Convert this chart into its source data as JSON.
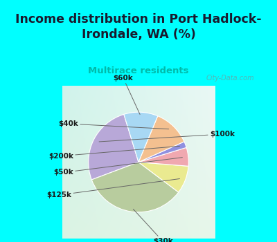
{
  "title": "Income distribution in Port Hadlock-\nIrondale, WA (%)",
  "subtitle": "Multirace residents",
  "slices": [
    {
      "label": "$100k",
      "value": 26,
      "color": "#b8a8d8"
    },
    {
      "label": "$30k",
      "value": 34,
      "color": "#b8cc9e"
    },
    {
      "label": "$125k",
      "value": 9,
      "color": "#eaea90"
    },
    {
      "label": "$50k",
      "value": 6,
      "color": "#f0a8b0"
    },
    {
      "label": "$200k",
      "value": 2,
      "color": "#9090e0"
    },
    {
      "label": "$40k",
      "value": 12,
      "color": "#f4c090"
    },
    {
      "label": "$60k",
      "value": 11,
      "color": "#a8d8f4"
    }
  ],
  "bg_top": "#00ffff",
  "title_color": "#1a1a2e",
  "subtitle_color": "#00bbaa",
  "watermark": "City-Data.com",
  "startangle": 107
}
